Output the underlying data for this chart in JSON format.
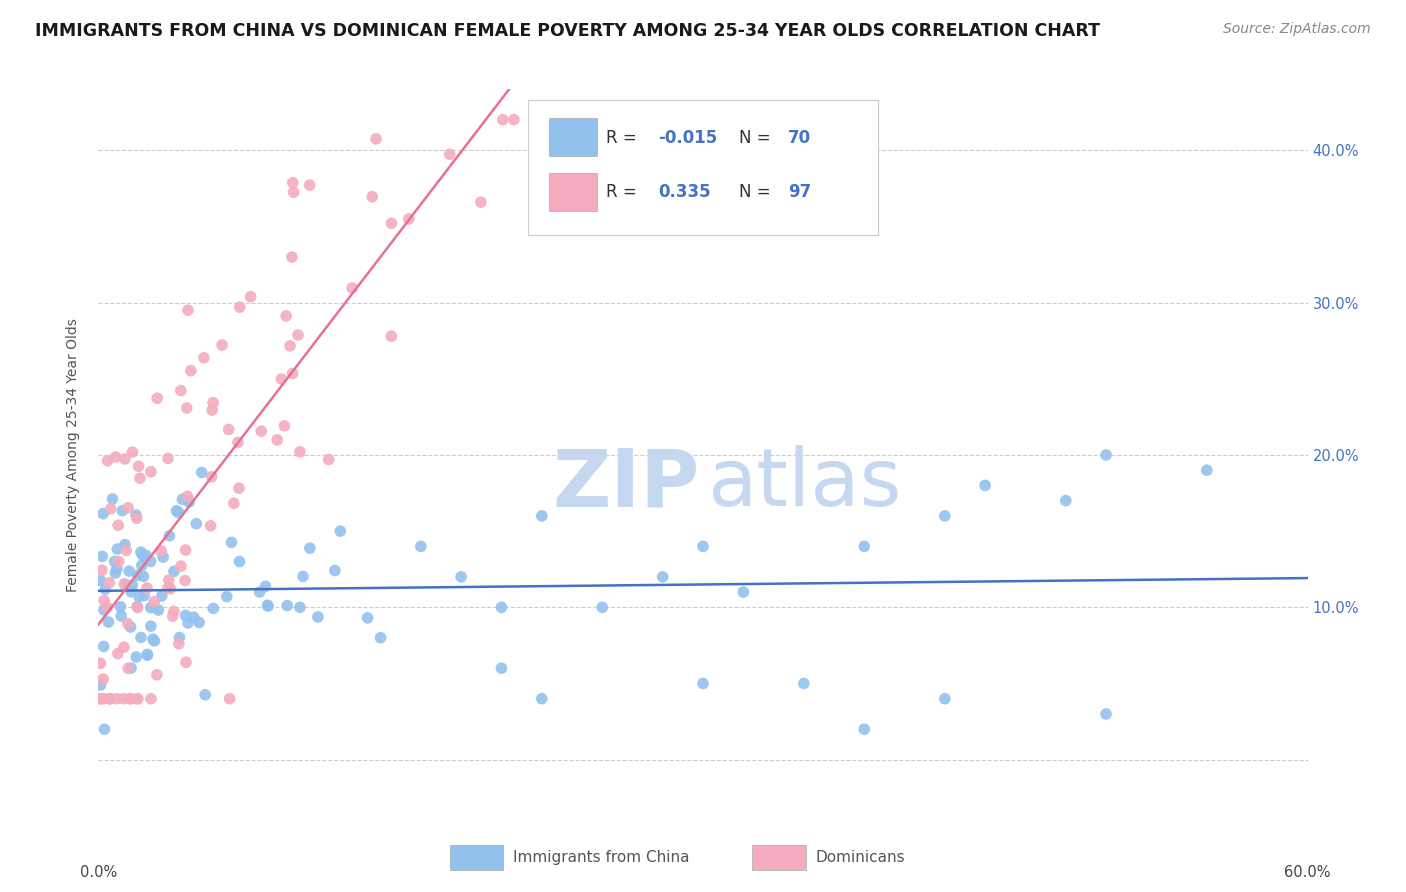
{
  "title": "IMMIGRANTS FROM CHINA VS DOMINICAN FEMALE POVERTY AMONG 25-34 YEAR OLDS CORRELATION CHART",
  "source": "Source: ZipAtlas.com",
  "ylabel": "Female Poverty Among 25-34 Year Olds",
  "yticks": [
    0.0,
    0.1,
    0.2,
    0.3,
    0.4
  ],
  "ytick_labels_right": [
    "10.0%",
    "20.0%",
    "30.0%",
    "40.0%"
  ],
  "xlim": [
    0.0,
    0.6
  ],
  "ylim": [
    -0.04,
    0.44
  ],
  "legend_china_label": "Immigrants from China",
  "legend_dominican_label": "Dominicans",
  "china_R": "-0.015",
  "china_N": "70",
  "dominican_R": "0.335",
  "dominican_N": "97",
  "china_color": "#92C1EE",
  "dominican_color": "#F4ACBE",
  "china_line_color": "#4472C4",
  "dominican_line_color": "#E8718D",
  "watermark_color": "#C5D8F0",
  "background_color": "#FFFFFF",
  "grid_color": "#CCCCCC",
  "title_fontsize": 12.5,
  "source_fontsize": 10,
  "axis_label_fontsize": 10,
  "tick_fontsize": 10.5,
  "legend_fontsize": 13
}
